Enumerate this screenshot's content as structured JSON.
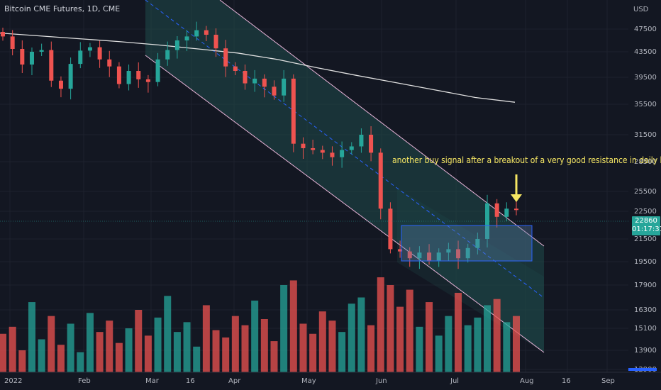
{
  "header": {
    "title": "Bitcoin CME Futures, 1D, CME",
    "currency": "USD"
  },
  "annotation": {
    "text": "another buy signal after a breakout of a very good resistance in daily b"
  },
  "price_badge": {
    "price": "22860",
    "countdown": "01:17:31"
  },
  "colors": {
    "background": "#131722",
    "up": "#26a69a",
    "down": "#ef5350",
    "channel_line": "#e8b4d8",
    "channel_fill": "#1e4d4a",
    "midline": "#2962ff",
    "ma_line": "#e0e0e0",
    "annotation": "#f5e663",
    "box_stroke": "#2962ff"
  },
  "chart_data": {
    "type": "candlestick",
    "title": "Bitcoin CME Futures, 1D, CME",
    "y_ticks": [
      47500,
      43500,
      39500,
      35500,
      31500,
      28500,
      25500,
      22500,
      21500,
      19500,
      17900,
      16300,
      15100,
      13900,
      12900
    ],
    "x_ticks": [
      "2022",
      "Feb",
      "Mar",
      "16",
      "Apr",
      "May",
      "Jun",
      "Jul",
      "Aug",
      "16",
      "Sep"
    ],
    "last_price": 22860,
    "ma_200": [
      46800,
      46300,
      45800,
      45300,
      44700,
      44000,
      43300,
      42300,
      41000,
      39800,
      38700,
      37600,
      36500,
      35800
    ],
    "candles_open": [
      47000,
      46200,
      44000,
      41500,
      43500,
      43800,
      39000,
      37800,
      41600,
      43700,
      44300,
      42300,
      41200,
      38500,
      40500,
      39200,
      38800,
      42300,
      43800,
      45500,
      46200,
      47300,
      46500,
      44100,
      41200,
      40500,
      38600,
      39300,
      38100,
      36800,
      39300,
      30500,
      30000,
      29800,
      29500,
      29000,
      29800,
      30200,
      31500,
      29500,
      22900,
      20600,
      20400,
      19800,
      20300,
      19600,
      20300,
      20600,
      19800,
      20700,
      21500,
      23700,
      22300,
      22900
    ],
    "candles_close": [
      46200,
      44000,
      41500,
      43500,
      43800,
      39000,
      37800,
      41600,
      43700,
      44300,
      42300,
      41200,
      38500,
      40500,
      39200,
      38800,
      42300,
      43800,
      45500,
      46200,
      47300,
      46500,
      44100,
      41200,
      40500,
      38600,
      39300,
      38100,
      36800,
      39300,
      30500,
      30000,
      29800,
      29500,
      29000,
      29800,
      30200,
      31500,
      29500,
      22900,
      20600,
      20400,
      19800,
      20300,
      19600,
      20300,
      20600,
      19800,
      20700,
      21500,
      23700,
      22300,
      22900,
      22860
    ],
    "volume": [
      14800,
      15200,
      13900,
      16800,
      14500,
      15900,
      14200,
      15400,
      13800,
      16100,
      14900,
      15600,
      14300,
      15100,
      16300,
      14700,
      15800,
      17200,
      14900,
      15500,
      14100,
      16600,
      15000,
      14600,
      15900,
      15300,
      16900,
      15700,
      14400,
      17900,
      18200,
      15400,
      14800,
      16200,
      15600,
      14900,
      16700,
      17100,
      15300,
      18400,
      17900,
      16500,
      17600,
      15200,
      16800,
      14700,
      15900,
      17400,
      15300,
      15800,
      16600,
      17000,
      15500,
      15900
    ],
    "channel": {
      "upper_start": [
        205,
        0
      ],
      "upper_end": [
        767,
        347
      ],
      "lower_start": [
        205,
        78
      ],
      "lower_end": [
        767,
        497
      ]
    },
    "box": {
      "price_top": 22300,
      "price_bottom": 19900
    }
  }
}
